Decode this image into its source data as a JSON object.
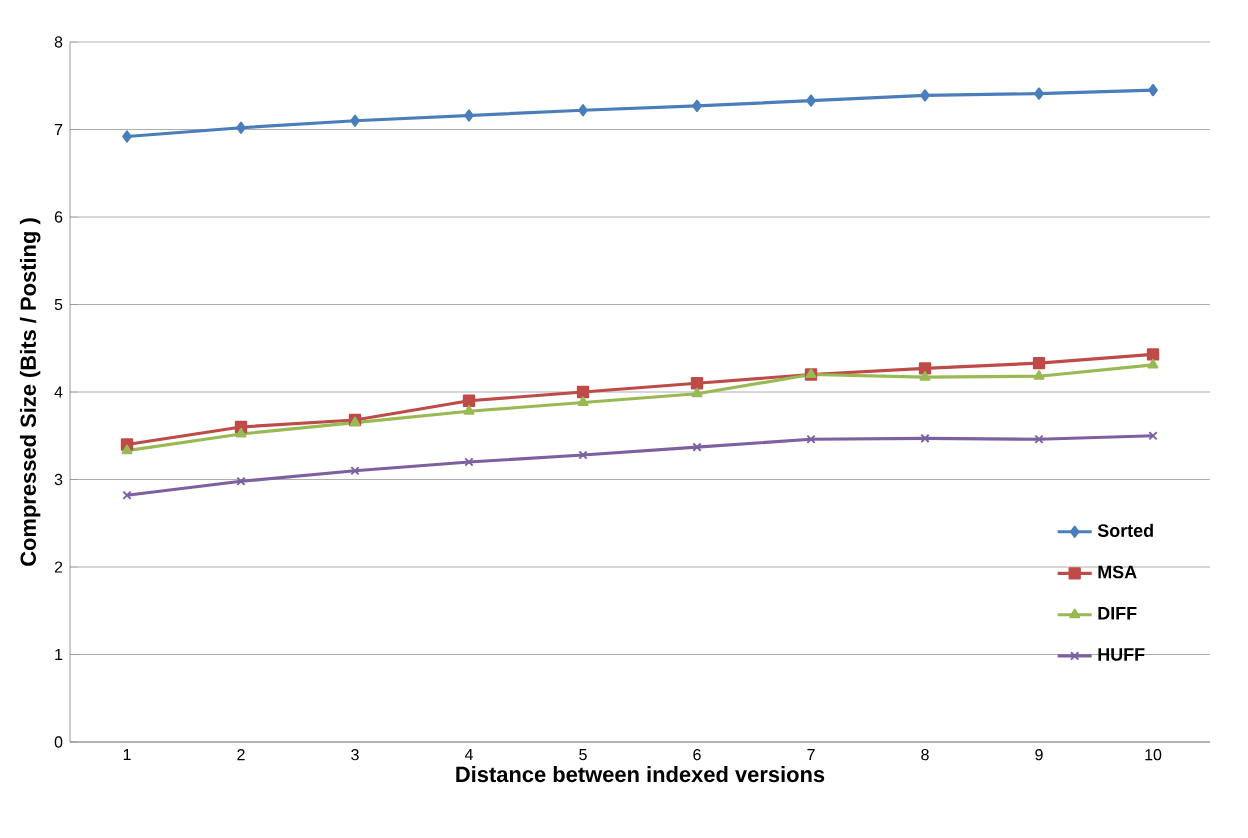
{
  "chart_data": {
    "type": "line",
    "xlabel": "Distance between indexed versions",
    "ylabel": "Compressed Size (Bits / Posting )",
    "categories": [
      "1",
      "2",
      "3",
      "4",
      "5",
      "6",
      "7",
      "8",
      "9",
      "10"
    ],
    "ylim": [
      0,
      8
    ],
    "yticks": [
      0,
      1,
      2,
      3,
      4,
      5,
      6,
      7,
      8
    ],
    "grid": "y",
    "legend": "right",
    "series": [
      {
        "name": "Sorted",
        "color": "#4a7ebb",
        "marker": "diamond",
        "values": [
          6.92,
          7.02,
          7.1,
          7.16,
          7.22,
          7.27,
          7.33,
          7.39,
          7.41,
          7.45
        ]
      },
      {
        "name": "MSA",
        "color": "#be4b48",
        "marker": "square",
        "values": [
          3.4,
          3.6,
          3.68,
          3.9,
          4.0,
          4.1,
          4.2,
          4.27,
          4.33,
          4.43
        ]
      },
      {
        "name": "DIFF",
        "color": "#98b954",
        "marker": "triangle",
        "values": [
          3.33,
          3.52,
          3.65,
          3.78,
          3.88,
          3.98,
          4.2,
          4.17,
          4.18,
          4.31
        ]
      },
      {
        "name": "HUFF",
        "color": "#7d60a0",
        "marker": "cross",
        "values": [
          2.82,
          2.98,
          3.1,
          3.2,
          3.28,
          3.37,
          3.46,
          3.47,
          3.46,
          3.5
        ]
      }
    ]
  }
}
